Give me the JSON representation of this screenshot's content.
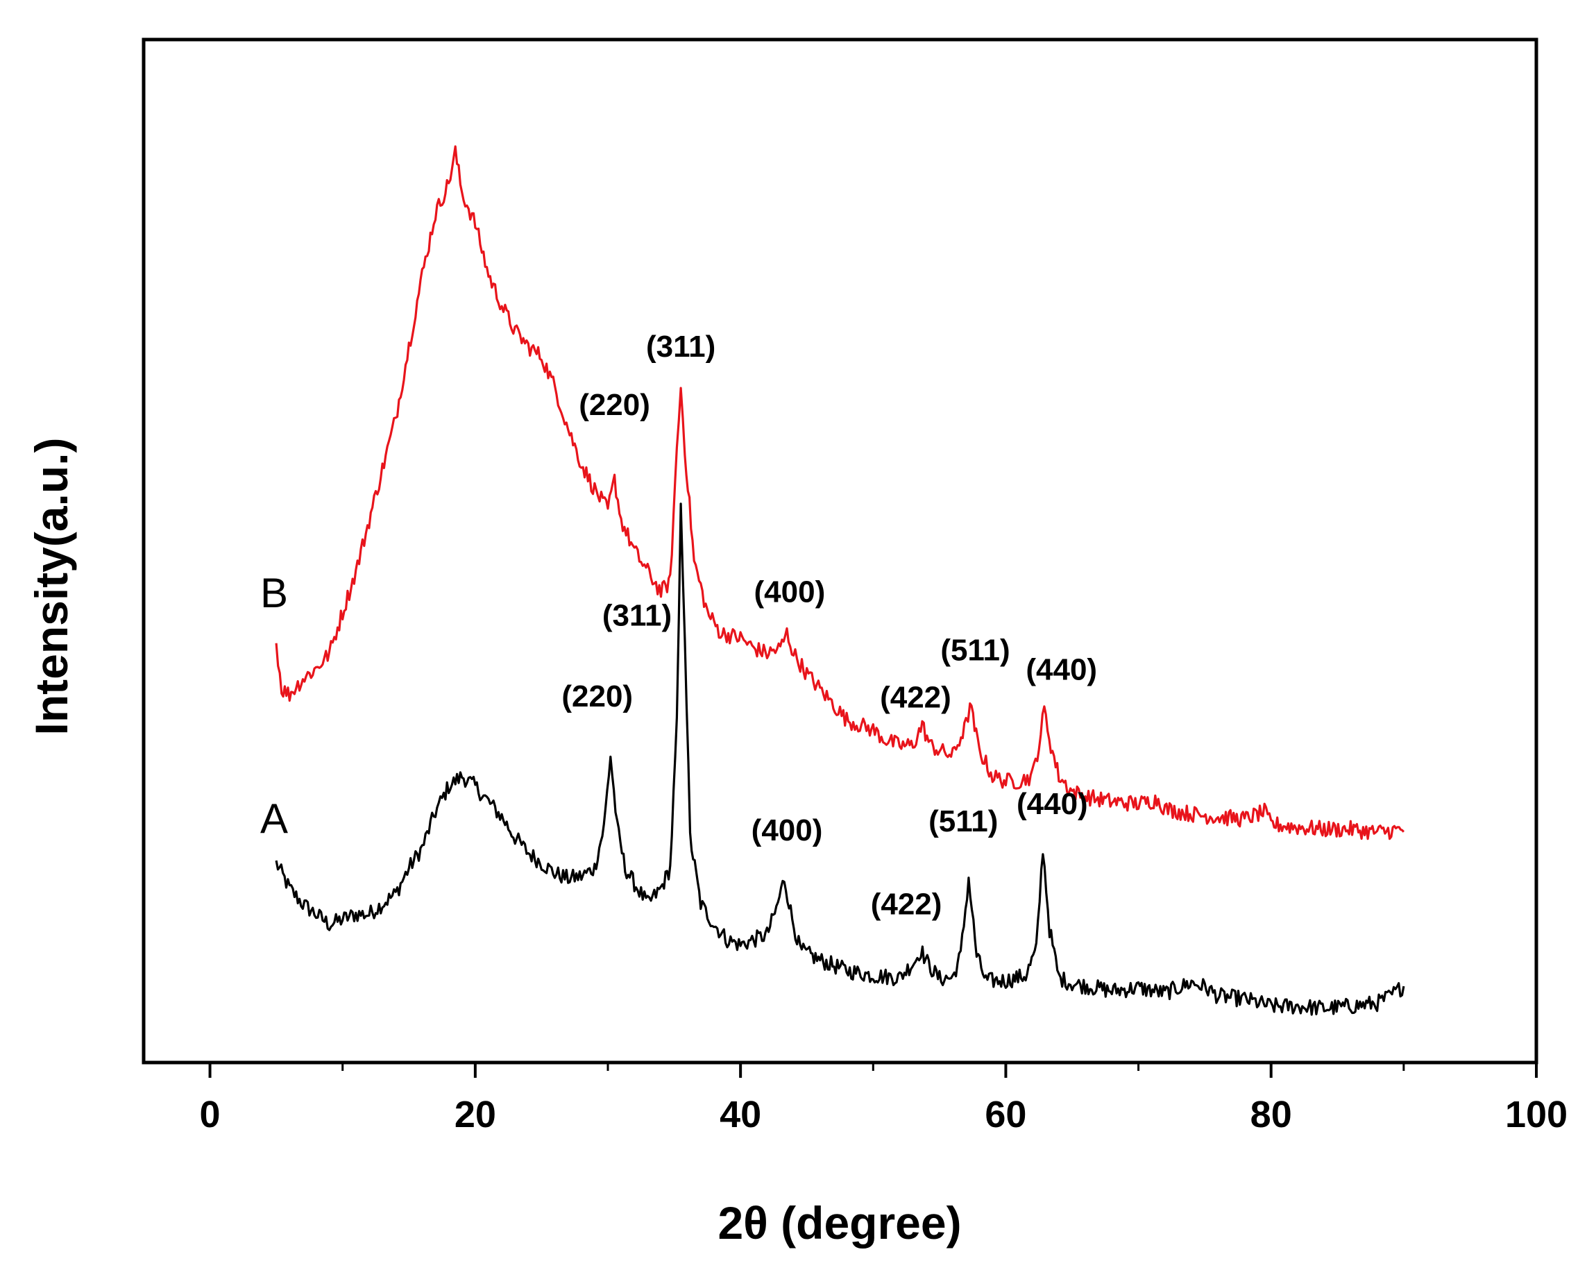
{
  "chart_data": {
    "type": "line",
    "title": "",
    "xlabel": "2θ (degree)",
    "ylabel": "Intensity(a.u.)",
    "xlim": [
      -5,
      100
    ],
    "ylim": [
      0,
      100
    ],
    "x_ticks": [
      0,
      20,
      40,
      60,
      80,
      100
    ],
    "x_tick_labels": [
      "0",
      "20",
      "40",
      "60",
      "80",
      "100"
    ],
    "x_minor_ticks": [
      10,
      30,
      50,
      70,
      90
    ],
    "y_ticks_visible": false,
    "grid": false,
    "series": [
      {
        "name": "A",
        "color": "#000000",
        "points": [
          [
            5,
            19.5
          ],
          [
            6,
            17
          ],
          [
            7,
            15.5
          ],
          [
            8,
            14.5
          ],
          [
            9,
            13.5
          ],
          [
            10,
            14
          ],
          [
            11,
            14.5
          ],
          [
            12,
            14.5
          ],
          [
            13,
            15.5
          ],
          [
            14,
            16.5
          ],
          [
            15,
            19
          ],
          [
            16,
            21
          ],
          [
            17,
            24.5
          ],
          [
            18,
            27
          ],
          [
            19,
            28
          ],
          [
            20,
            27
          ],
          [
            21,
            25.5
          ],
          [
            22,
            24
          ],
          [
            23,
            22
          ],
          [
            24,
            20.5
          ],
          [
            25,
            19.5
          ],
          [
            26,
            18.5
          ],
          [
            27,
            18
          ],
          [
            28,
            18.2
          ],
          [
            29,
            19
          ],
          [
            29.7,
            23
          ],
          [
            30.2,
            30
          ],
          [
            30.7,
            23
          ],
          [
            31.3,
            19
          ],
          [
            32,
            17.5
          ],
          [
            33,
            15.5
          ],
          [
            34,
            17
          ],
          [
            34.7,
            19
          ],
          [
            35.2,
            33
          ],
          [
            35.5,
            54
          ],
          [
            35.8,
            42
          ],
          [
            36.2,
            22
          ],
          [
            37,
            15.5
          ],
          [
            38,
            13.5
          ],
          [
            39,
            12
          ],
          [
            40,
            11.5
          ],
          [
            41,
            12
          ],
          [
            42,
            12.5
          ],
          [
            42.7,
            15
          ],
          [
            43.3,
            18
          ],
          [
            43.9,
            14
          ],
          [
            44.5,
            11
          ],
          [
            46,
            10
          ],
          [
            48,
            9
          ],
          [
            50,
            8.5
          ],
          [
            52,
            8.3
          ],
          [
            53.2,
            10
          ],
          [
            53.6,
            11
          ],
          [
            54.2,
            9.5
          ],
          [
            55,
            8.2
          ],
          [
            56,
            8.3
          ],
          [
            56.6,
            10.5
          ],
          [
            57.2,
            18
          ],
          [
            57.8,
            10.5
          ],
          [
            58.5,
            8
          ],
          [
            60,
            8
          ],
          [
            61.5,
            8.5
          ],
          [
            62.3,
            11
          ],
          [
            62.8,
            21
          ],
          [
            63.3,
            13
          ],
          [
            64,
            8.3
          ],
          [
            65,
            7.7
          ],
          [
            66,
            7.5
          ],
          [
            68,
            7
          ],
          [
            70,
            7.3
          ],
          [
            72,
            6.8
          ],
          [
            74,
            7.8
          ],
          [
            75,
            7.4
          ],
          [
            76,
            6.5
          ],
          [
            78,
            6.2
          ],
          [
            80,
            5.5
          ],
          [
            82,
            5.5
          ],
          [
            84,
            5.3
          ],
          [
            86,
            5.5
          ],
          [
            88,
            5.8
          ],
          [
            89,
            6.5
          ],
          [
            90,
            7.5
          ]
        ]
      },
      {
        "name": "B",
        "color": "#e8141b",
        "points": [
          [
            5,
            41
          ],
          [
            5.4,
            36.5
          ],
          [
            6,
            36
          ],
          [
            7,
            37.5
          ],
          [
            8,
            38.5
          ],
          [
            9,
            40
          ],
          [
            10,
            44
          ],
          [
            11,
            48
          ],
          [
            12,
            53
          ],
          [
            13,
            58
          ],
          [
            14,
            63
          ],
          [
            15,
            70
          ],
          [
            16,
            77
          ],
          [
            17,
            83
          ],
          [
            18,
            86
          ],
          [
            18.5,
            89
          ],
          [
            19,
            85
          ],
          [
            20,
            82
          ],
          [
            21,
            77
          ],
          [
            22,
            74
          ],
          [
            23,
            71.5
          ],
          [
            24,
            70
          ],
          [
            25,
            69
          ],
          [
            26,
            66
          ],
          [
            27,
            62
          ],
          [
            28,
            58.5
          ],
          [
            29,
            56
          ],
          [
            30,
            54
          ],
          [
            30.5,
            57
          ],
          [
            31,
            53
          ],
          [
            32,
            50
          ],
          [
            33,
            48
          ],
          [
            34,
            46
          ],
          [
            34.7,
            47
          ],
          [
            35.2,
            60
          ],
          [
            35.5,
            66
          ],
          [
            35.8,
            60
          ],
          [
            36.5,
            49
          ],
          [
            37.5,
            44
          ],
          [
            38.5,
            42
          ],
          [
            40,
            41.5
          ],
          [
            41,
            40.5
          ],
          [
            42,
            40
          ],
          [
            43,
            40.5
          ],
          [
            43.5,
            42
          ],
          [
            44,
            40
          ],
          [
            45,
            38
          ],
          [
            46,
            36.5
          ],
          [
            47,
            35
          ],
          [
            48,
            33.5
          ],
          [
            49,
            33
          ],
          [
            50,
            32.5
          ],
          [
            51,
            31.5
          ],
          [
            52,
            31
          ],
          [
            53,
            31
          ],
          [
            53.7,
            33
          ],
          [
            54.3,
            31
          ],
          [
            55,
            30.5
          ],
          [
            56,
            30
          ],
          [
            57,
            33
          ],
          [
            57.3,
            35
          ],
          [
            58,
            30.5
          ],
          [
            59,
            28
          ],
          [
            60,
            27.5
          ],
          [
            61,
            27.5
          ],
          [
            62,
            28
          ],
          [
            62.5,
            31
          ],
          [
            62.9,
            34.5
          ],
          [
            63.4,
            31
          ],
          [
            64,
            28
          ],
          [
            65,
            26.5
          ],
          [
            66,
            26
          ],
          [
            68,
            25.5
          ],
          [
            70,
            25.3
          ],
          [
            71.5,
            25.7
          ],
          [
            72,
            24.8
          ],
          [
            74,
            24.3
          ],
          [
            76,
            24
          ],
          [
            78,
            23.8
          ],
          [
            79.5,
            24.5
          ],
          [
            80,
            23.3
          ],
          [
            82,
            23
          ],
          [
            84,
            22.8
          ],
          [
            86,
            22.8
          ],
          [
            88,
            22.5
          ],
          [
            90,
            22.8
          ]
        ]
      }
    ],
    "series_labels": [
      "B",
      "A"
    ],
    "annotations": [
      {
        "series": "B",
        "text": "(311)",
        "x": 35.5,
        "y": 69
      },
      {
        "series": "B",
        "text": "(220)",
        "x": 30.5,
        "y": 63.3
      },
      {
        "series": "B",
        "text": "(400)",
        "x": 43.7,
        "y": 45
      },
      {
        "series": "B",
        "text": "(422)",
        "x": 53.2,
        "y": 34.7
      },
      {
        "series": "B",
        "text": "(511)",
        "x": 57.7,
        "y": 39.3
      },
      {
        "series": "B",
        "text": "(440)",
        "x": 64.2,
        "y": 37.4
      },
      {
        "series": "A",
        "text": "(311)",
        "x": 32.2,
        "y": 42.7
      },
      {
        "series": "A",
        "text": "(220)",
        "x": 29.2,
        "y": 34.8
      },
      {
        "series": "A",
        "text": "(400)",
        "x": 43.5,
        "y": 21.7
      },
      {
        "series": "A",
        "text": "(422)",
        "x": 52.5,
        "y": 14.5
      },
      {
        "series": "A",
        "text": "(511)",
        "x": 56.8,
        "y": 22.6
      },
      {
        "series": "A",
        "text": "(440)",
        "x": 63.5,
        "y": 24.3
      }
    ]
  }
}
